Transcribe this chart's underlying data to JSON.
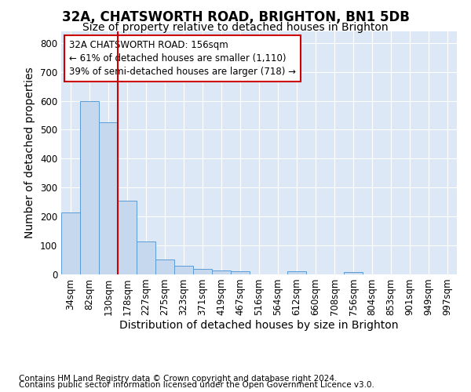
{
  "title1": "32A, CHATSWORTH ROAD, BRIGHTON, BN1 5DB",
  "title2": "Size of property relative to detached houses in Brighton",
  "xlabel": "Distribution of detached houses by size in Brighton",
  "ylabel": "Number of detached properties",
  "footnote1": "Contains HM Land Registry data © Crown copyright and database right 2024.",
  "footnote2": "Contains public sector information licensed under the Open Government Licence v3.0.",
  "bar_labels": [
    "34sqm",
    "82sqm",
    "130sqm",
    "178sqm",
    "227sqm",
    "275sqm",
    "323sqm",
    "371sqm",
    "419sqm",
    "467sqm",
    "516sqm",
    "564sqm",
    "612sqm",
    "660sqm",
    "708sqm",
    "756sqm",
    "804sqm",
    "853sqm",
    "901sqm",
    "949sqm",
    "997sqm"
  ],
  "bar_values": [
    215,
    598,
    525,
    255,
    115,
    52,
    30,
    18,
    14,
    10,
    0,
    0,
    10,
    0,
    0,
    8,
    0,
    0,
    0,
    0,
    0
  ],
  "bar_color": "#c5d8ed",
  "bar_edge_color": "#5b9bd5",
  "vline_x": 2.5,
  "vline_color": "#cc0000",
  "annotation_line1": "32A CHATSWORTH ROAD: 156sqm",
  "annotation_line2": "← 61% of detached houses are smaller (1,110)",
  "annotation_line3": "39% of semi-detached houses are larger (718) →",
  "annotation_box_color": "#ffffff",
  "annotation_box_edge": "#cc0000",
  "ylim": [
    0,
    840
  ],
  "yticks": [
    0,
    100,
    200,
    300,
    400,
    500,
    600,
    700,
    800
  ],
  "background_color": "#dce8f5",
  "grid_color": "#ffffff",
  "title1_fontsize": 12,
  "title2_fontsize": 10,
  "annotation_fontsize": 8.5,
  "axis_label_fontsize": 10,
  "tick_fontsize": 8.5,
  "footnote_fontsize": 7.5
}
